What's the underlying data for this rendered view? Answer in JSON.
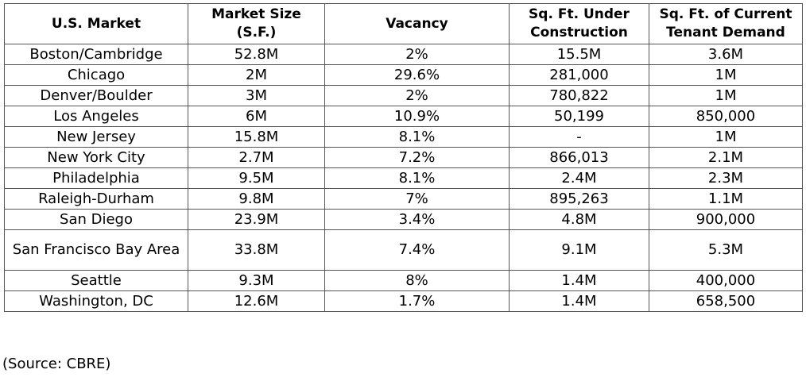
{
  "table": {
    "headers": [
      "U.S. Market",
      "Market Size\n(S.F.)",
      "Vacancy",
      "Sq. Ft. Under\nConstruction",
      "Sq. Ft. of Current\nTenant Demand"
    ],
    "rows": [
      [
        "Boston/Cambridge",
        "52.8M",
        "2%",
        "15.5M",
        "3.6M"
      ],
      [
        "Chicago",
        "2M",
        "29.6%",
        "281,000",
        "1M"
      ],
      [
        "Denver/Boulder",
        "3M",
        "2%",
        "780,822",
        "1M"
      ],
      [
        "Los Angeles",
        "6M",
        "10.9%",
        "50,199",
        "850,000"
      ],
      [
        "New Jersey",
        "15.8M",
        "8.1%",
        "-",
        "1M"
      ],
      [
        "New York City",
        "2.7M",
        "7.2%",
        "866,013",
        "2.1M"
      ],
      [
        "Philadelphia",
        "9.5M",
        "8.1%",
        "2.4M",
        "2.3M"
      ],
      [
        "Raleigh-Durham",
        "9.8M",
        "7%",
        "895,263",
        "1.1M"
      ],
      [
        "San Diego",
        "23.9M",
        "3.4%",
        "4.8M",
        "900,000"
      ],
      [
        "San Francisco Bay Area",
        "33.8M",
        "7.4%",
        "9.1M",
        "5.3M"
      ],
      [
        "Seattle",
        "9.3M",
        "8%",
        "1.4M",
        "400,000"
      ],
      [
        "Washington, DC",
        "12.6M",
        "1.7%",
        "1.4M",
        "658,500"
      ]
    ]
  },
  "source": "(Source: CBRE)"
}
